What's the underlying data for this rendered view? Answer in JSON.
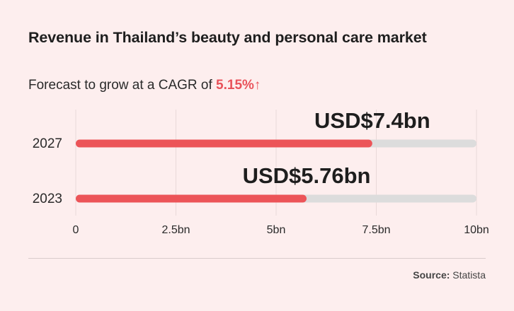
{
  "header": {
    "title": "Revenue in Thailand’s beauty and personal care market",
    "subtitle_prefix": "Forecast to grow at a CAGR of ",
    "cagr": "5.15%",
    "trend_icon": "arrow-up-icon",
    "trend_glyph": "↑"
  },
  "chart_data": {
    "type": "bar",
    "orientation": "horizontal",
    "categories": [
      "2027",
      "2023"
    ],
    "values": [
      7.4,
      5.76
    ],
    "data_labels": [
      "USD$7.4bn",
      "USD$5.76bn"
    ],
    "xlim": [
      0,
      10
    ],
    "x_ticks": [
      0,
      2.5,
      5,
      7.5,
      10
    ],
    "x_tick_labels": [
      "0",
      "2.5bn",
      "5bn",
      "7.5bn",
      "10bn"
    ],
    "grid": true,
    "colors": {
      "bar": "#ec5458",
      "track": "#dcdcdc",
      "grid": "#e9d9d9"
    }
  },
  "footer": {
    "source_label": "Source:",
    "source_value": "Statista"
  }
}
